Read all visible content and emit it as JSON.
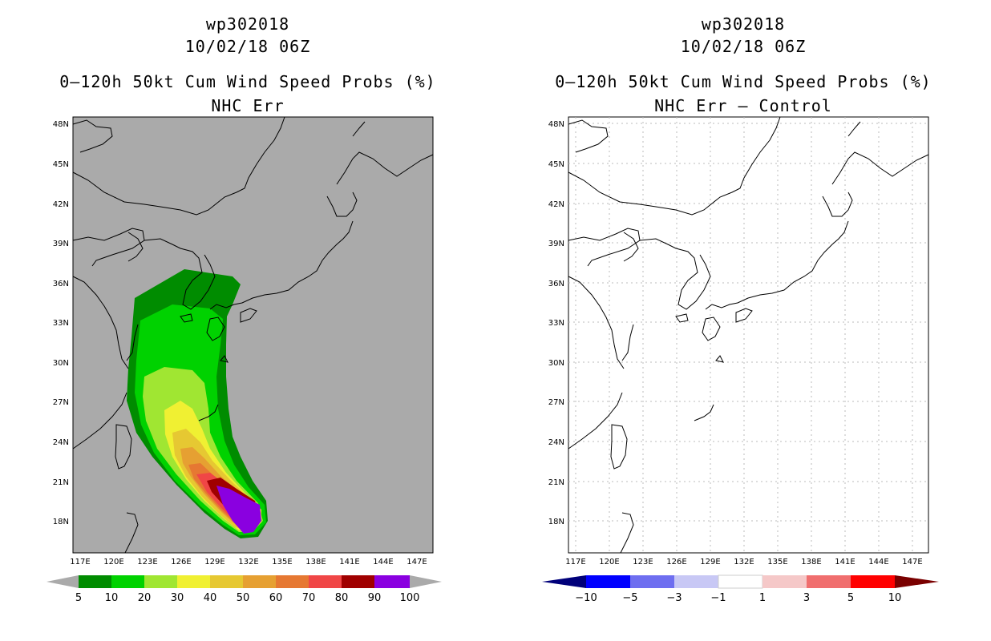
{
  "left": {
    "title_id": "wp302018",
    "title_time": "10/02/18 06Z",
    "title_main": "0–120h 50kt Cum Wind Speed Probs (%)",
    "subtitle": "NHC Err",
    "colorbar": {
      "labels": [
        "5",
        "10",
        "20",
        "30",
        "40",
        "50",
        "60",
        "70",
        "80",
        "90",
        "100"
      ],
      "colors": [
        "#008c00",
        "#00d200",
        "#a0e632",
        "#f0f032",
        "#e6c832",
        "#e6a032",
        "#e67832",
        "#f04646",
        "#a00000",
        "#8a00e0"
      ]
    }
  },
  "right": {
    "title_id": "wp302018",
    "title_time": "10/02/18 06Z",
    "title_main": "0–120h 50kt Cum Wind Speed Probs (%)",
    "subtitle": "NHC Err – Control",
    "colorbar": {
      "labels": [
        "−10",
        "−5",
        "−3",
        "−1",
        "1",
        "3",
        "5",
        "10"
      ],
      "colors": [
        "#0000ff",
        "#6e6ef0",
        "#c8c8f5",
        "#ffffff",
        "#f5c8c8",
        "#f06e6e",
        "#ff0000"
      ]
    }
  },
  "map": {
    "lon_labels": [
      "117E",
      "120E",
      "123E",
      "126E",
      "129E",
      "132E",
      "135E",
      "138E",
      "141E",
      "144E",
      "147E"
    ],
    "lat_labels": [
      "48N",
      "45N",
      "42N",
      "39N",
      "36N",
      "33N",
      "30N",
      "27N",
      "24N",
      "21N",
      "18N"
    ],
    "lon_range": [
      116.6,
      148.6
    ],
    "lat_range": [
      15.7,
      48.6
    ]
  },
  "colors": {
    "background_left": "#aaaaaa",
    "background_right": "#ffffff",
    "grid": "#bbbbbb"
  }
}
